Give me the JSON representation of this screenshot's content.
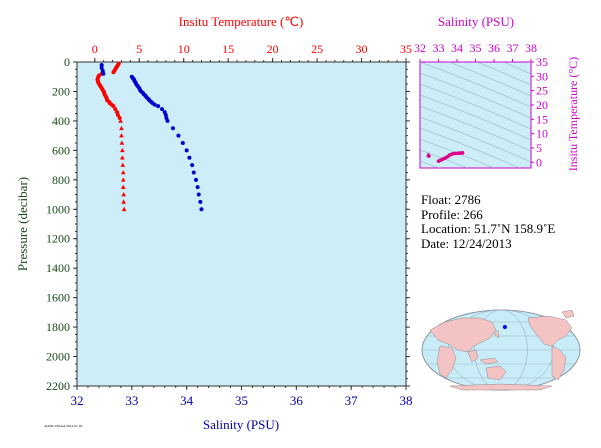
{
  "chart_data": [
    {
      "type": "scatter",
      "name": "main-profile",
      "x_top_label": "Insitu Temperature (℃)",
      "x_top_ticks": [
        "0",
        "5",
        "10",
        "15",
        "20",
        "25",
        "30",
        "35"
      ],
      "x_top_lim": [
        -2,
        35
      ],
      "x_bottom_label": "Salinity (PSU)",
      "x_bottom_ticks": [
        "32",
        "33",
        "34",
        "35",
        "36",
        "37",
        "38"
      ],
      "x_bottom_lim": [
        32,
        38
      ],
      "ylabel": "Pressure (decibar)",
      "y_ticks": [
        "0",
        "200",
        "400",
        "600",
        "800",
        "1000",
        "1200",
        "1400",
        "1600",
        "1800",
        "2000",
        "2200"
      ],
      "ylim": [
        0,
        2200
      ],
      "y_reversed": true,
      "temperature_color": "#ff0000",
      "salinity_color": "#0000cc",
      "temperature": {
        "pressure": [
          10,
          20,
          30,
          40,
          50,
          60,
          70,
          80,
          90,
          100,
          110,
          120,
          130,
          140,
          150,
          160,
          170,
          180,
          190,
          200,
          210,
          220,
          230,
          240,
          250,
          260,
          270,
          280,
          290,
          300,
          320,
          340,
          360,
          380,
          400,
          450,
          500,
          550,
          600,
          650,
          700,
          750,
          800,
          850,
          900,
          950,
          1000
        ],
        "value": [
          2.7,
          2.6,
          2.5,
          2.4,
          2.3,
          2.2,
          2.1,
          0.8,
          0.5,
          0.4,
          0.35,
          0.3,
          0.35,
          0.4,
          0.5,
          0.6,
          0.7,
          0.8,
          0.9,
          1.0,
          1.05,
          1.1,
          1.2,
          1.3,
          1.35,
          1.4,
          1.6,
          1.7,
          1.9,
          2.1,
          2.3,
          2.5,
          2.6,
          2.8,
          2.9,
          3.0,
          3.0,
          3.05,
          3.1,
          3.1,
          3.15,
          3.2,
          3.2,
          3.2,
          3.25,
          3.25,
          3.3
        ]
      },
      "salinity": {
        "pressure": [
          20,
          40,
          60,
          80,
          100,
          110,
          120,
          130,
          140,
          150,
          160,
          170,
          180,
          190,
          200,
          210,
          220,
          230,
          240,
          250,
          260,
          270,
          280,
          290,
          300,
          320,
          340,
          360,
          380,
          400,
          450,
          500,
          550,
          600,
          650,
          700,
          750,
          800,
          850,
          900,
          950,
          1000
        ],
        "value": [
          32.45,
          32.45,
          32.47,
          32.48,
          33.0,
          33.02,
          33.04,
          33.05,
          33.07,
          33.08,
          33.1,
          33.12,
          33.14,
          33.15,
          33.17,
          33.2,
          33.22,
          33.25,
          33.27,
          33.3,
          33.32,
          33.35,
          33.38,
          33.42,
          33.48,
          33.55,
          33.6,
          33.62,
          33.63,
          33.65,
          33.75,
          33.85,
          33.93,
          34.0,
          34.05,
          34.1,
          34.13,
          34.17,
          34.2,
          34.22,
          34.25,
          34.27
        ]
      }
    },
    {
      "type": "scatter",
      "name": "ts-diagram",
      "x_top_label": "Salinity (PSU)",
      "x_ticks": [
        "32",
        "33",
        "34",
        "35",
        "36",
        "37",
        "38"
      ],
      "xlim": [
        32,
        38
      ],
      "ylabel": "Insitu Temperature (°C)",
      "y_ticks": [
        "0",
        "5",
        "10",
        "15",
        "20",
        "25",
        "30",
        "35"
      ],
      "ylim": [
        -2,
        35
      ],
      "color": "#dd0088",
      "points": {
        "salinity": [
          32.45,
          32.48,
          33.0,
          33.1,
          33.2,
          33.3,
          33.4,
          33.5,
          33.6,
          33.7,
          33.8,
          33.9,
          34.0,
          34.1,
          34.2,
          34.3
        ],
        "temperature": [
          2.6,
          2.2,
          0.4,
          0.7,
          1.0,
          1.3,
          1.6,
          2.0,
          2.5,
          2.8,
          3.0,
          3.1,
          3.1,
          3.2,
          3.2,
          3.3
        ]
      }
    }
  ],
  "info": {
    "float": "Float:  2786",
    "profile": "Profile:  266",
    "location": "Location:  51.7˚N  158.9˚E",
    "date": "Date:  12/24/2013"
  },
  "footnote": "AOML/NOAA 2014-01-02",
  "map": {
    "land_color": "#f4c4c4",
    "ocean_color": "#c8ecf8",
    "marker_color": "#0000ff",
    "float_lon": 158.9,
    "float_lat": 51.7
  }
}
